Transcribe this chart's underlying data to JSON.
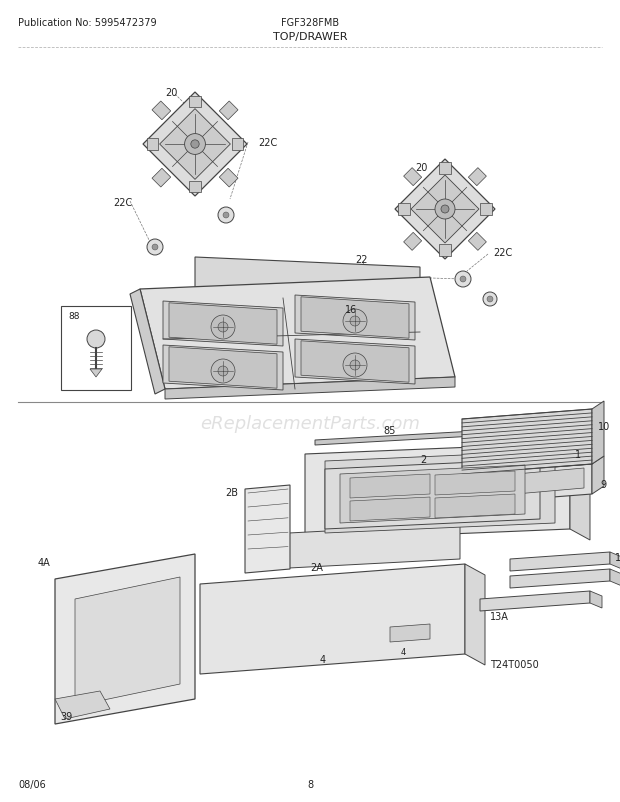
{
  "title": "TOP/DRAWER",
  "pub_no": "Publication No: 5995472379",
  "model": "FGF328FMB",
  "date": "08/06",
  "page": "8",
  "watermark": "eReplacementParts.com",
  "bg_color": "#ffffff",
  "lc": "#444444",
  "tc": "#222222",
  "gc": "#bbbbbb"
}
